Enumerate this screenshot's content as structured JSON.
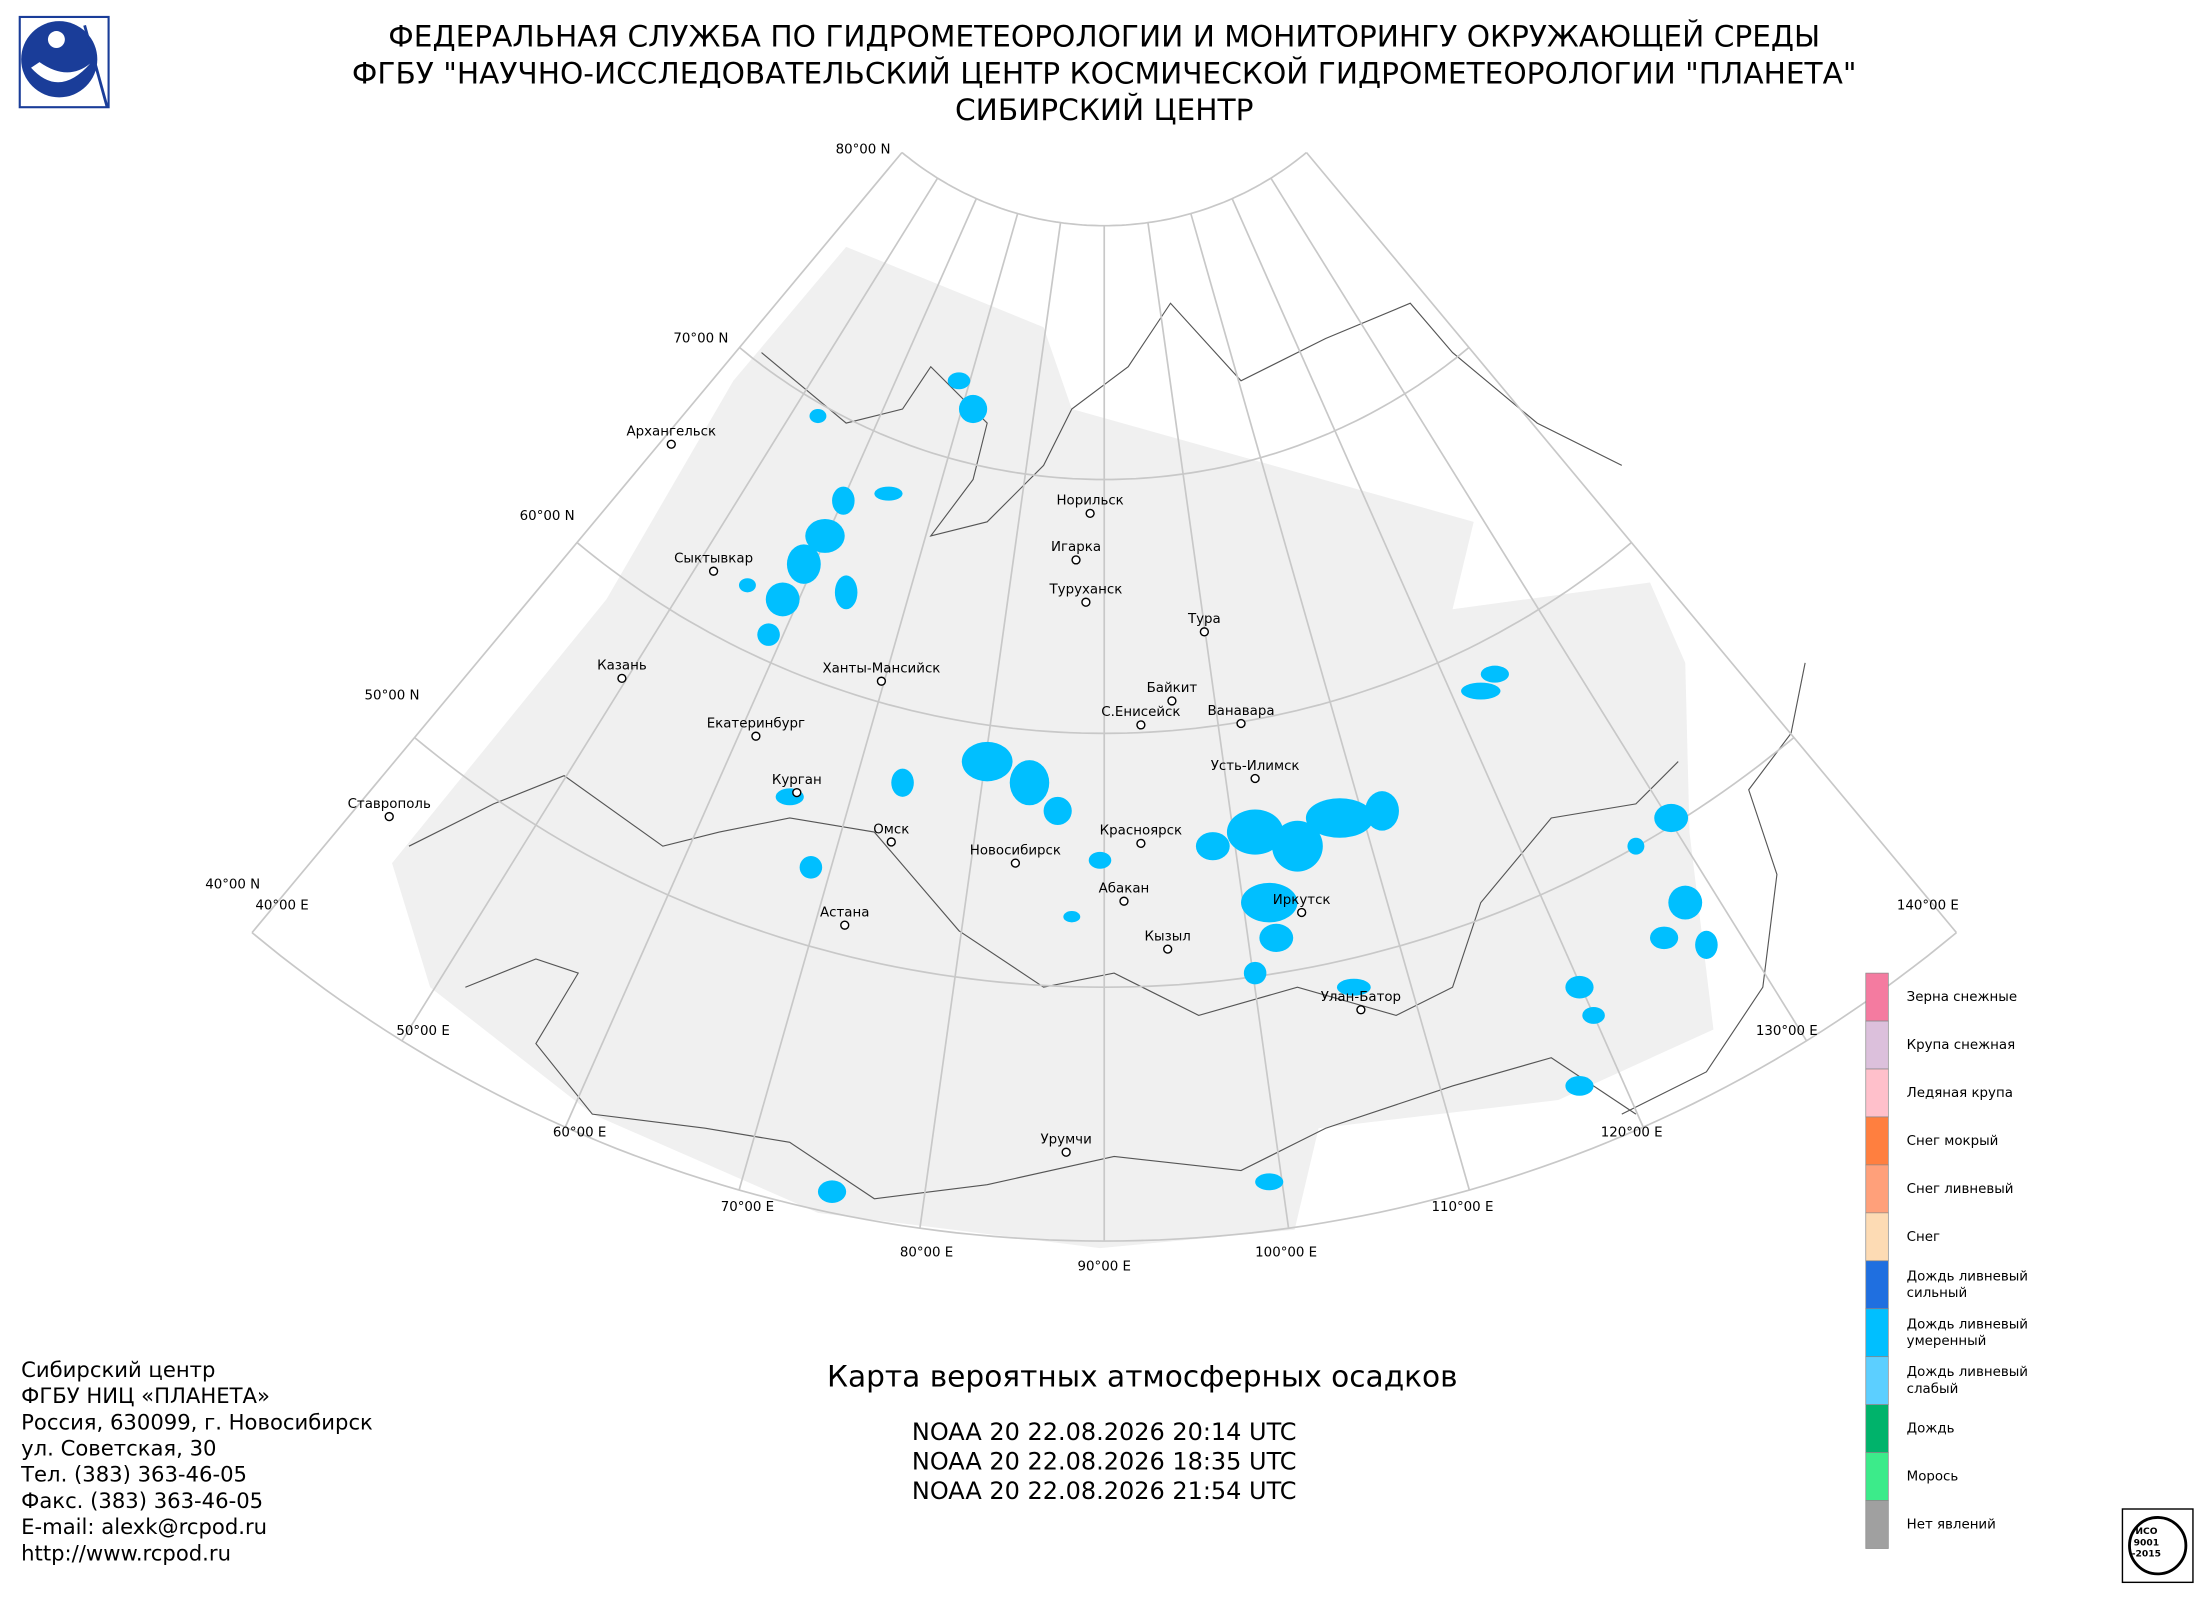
{
  "header": {
    "lines": [
      "ФЕДЕРАЛЬНАЯ СЛУЖБА ПО ГИДРОМЕТЕОРОЛОГИИ И МОНИТОРИНГУ ОКРУЖАЮЩЕЙ СРЕДЫ",
      "ФГБУ \"НАУЧНО-ИССЛЕДОВАТЕЛЬСКИЙ ЦЕНТР КОСМИЧЕСКОЙ ГИДРОМЕТЕОРОЛОГИИ \"ПЛАНЕТА\"",
      "СИБИРСКИЙ ЦЕНТР"
    ]
  },
  "graticule": {
    "lat_labels": [
      "80°00 N",
      "70°00 N",
      "60°00 N",
      "50°00 N",
      "40°00 N"
    ],
    "lon_labels": [
      "40°00 E",
      "50°00 E",
      "60°00 E",
      "70°00 E",
      "80°00 E",
      "90°00 E",
      "100°00 E",
      "110°00 E",
      "120°00 E",
      "130°00 E",
      "140°00 E"
    ]
  },
  "cities": [
    "Архангельск",
    "Сыктывкар",
    "Казань",
    "Екатеринбург",
    "Курган",
    "Ставрополь",
    "Ханты-Мансийск",
    "Омск",
    "Астана",
    "Новосибирск",
    "Норильск",
    "Игарка",
    "Туруханск",
    "Тура",
    "Байкит",
    "Ванавара",
    "С.Енисейск",
    "Усть-Илимск",
    "Красноярск",
    "Абакан",
    "Кызыл",
    "Иркутск",
    "Улан-Батор",
    "Урумчи"
  ],
  "legend": {
    "items": [
      {
        "label": [
          "Зерна снежные"
        ],
        "color": "#f47ba0"
      },
      {
        "label": [
          "Крупа снежная"
        ],
        "color": "#dcc0dc"
      },
      {
        "label": [
          "Ледяная крупа"
        ],
        "color": "#ffc0cb"
      },
      {
        "label": [
          "Снег мокрый"
        ],
        "color": "#ff7f3f"
      },
      {
        "label": [
          "Снег ливневый"
        ],
        "color": "#ffa07a"
      },
      {
        "label": [
          "Снег"
        ],
        "color": "#fddbb4"
      },
      {
        "label": [
          "Дождь ливневый",
          "сильный"
        ],
        "color": "#1f6fe0"
      },
      {
        "label": [
          "Дождь ливневый",
          "умеренный"
        ],
        "color": "#00bfff"
      },
      {
        "label": [
          "Дождь ливневый",
          "слабый"
        ],
        "color": "#5ccfff"
      },
      {
        "label": [
          "Дождь"
        ],
        "color": "#00b36b"
      },
      {
        "label": [
          "Морось"
        ],
        "color": "#3ceb8a"
      },
      {
        "label": [
          "Нет явлений"
        ],
        "color": "#a0a0a0"
      }
    ]
  },
  "footer": {
    "contact": [
      "Сибирский центр",
      "ФГБУ НИЦ «ПЛАНЕТА»",
      "Россия, 630099, г. Новосибирск",
      "ул. Советская, 30",
      "Тел. (383) 363-46-05",
      "Факс. (383) 363-46-05",
      "E-mail: alexk@rcpod.ru",
      "http://www.rcpod.ru"
    ],
    "map_title": "Карта вероятных атмосферных осадков",
    "passes": [
      "NOAA 20 22.08.2026  20:14 UTC",
      "NOAA 20 22.08.2026  18:35 UTC",
      "NOAA 20 22.08.2026  21:54 UTC"
    ],
    "iso_badge": [
      "ИСО",
      "9001",
      "-2015"
    ]
  }
}
